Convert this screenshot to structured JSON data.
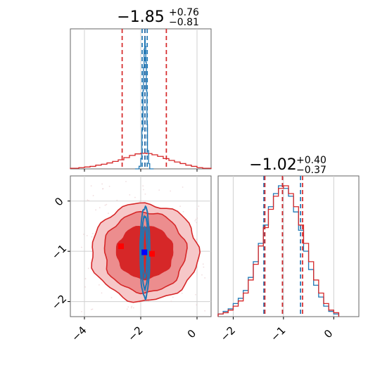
{
  "chart_data": {
    "type": "corner",
    "panels": [
      {
        "id": "top-left",
        "kind": "histogram-1d",
        "parameter_index": 0,
        "title": {
          "median": "−1.85",
          "plus": "+0.76",
          "minus": "−0.81"
        },
        "xlim": [
          -4.5,
          0.5
        ],
        "xticks": [
          -4,
          -2,
          0
        ],
        "grid": true,
        "series": [
          {
            "color": "#d62728",
            "quantiles": [
              -2.66,
              -1.85,
              -1.09
            ],
            "bins": [
              [
                -4.5,
                0.04
              ],
              [
                -4.2,
                0.08
              ],
              [
                -4.0,
                0.12
              ],
              [
                -3.8,
                0.16
              ],
              [
                -3.6,
                0.24
              ],
              [
                -3.4,
                0.3
              ],
              [
                -3.2,
                0.38
              ],
              [
                -3.0,
                0.48
              ],
              [
                -2.8,
                0.58
              ],
              [
                -2.6,
                0.72
              ],
              [
                -2.4,
                0.86
              ],
              [
                -2.2,
                0.96
              ],
              [
                -2.0,
                1.0
              ],
              [
                -1.8,
                0.98
              ],
              [
                -1.6,
                0.9
              ],
              [
                -1.4,
                0.8
              ],
              [
                -1.2,
                0.66
              ],
              [
                -1.0,
                0.54
              ],
              [
                -0.8,
                0.44
              ],
              [
                -0.6,
                0.34
              ],
              [
                -0.4,
                0.24
              ],
              [
                -0.2,
                0.16
              ],
              [
                0.0,
                0.08
              ],
              [
                0.2,
                0.04
              ]
            ]
          },
          {
            "color": "#1f77b4",
            "quantiles": [
              -1.95,
              -1.85,
              -1.77
            ],
            "bins": [
              [
                -2.2,
                0.0
              ],
              [
                -2.06,
                0.02
              ],
              [
                -2.0,
                0.08
              ],
              [
                -1.96,
                0.3
              ],
              [
                -1.92,
                0.6
              ],
              [
                -1.9,
                0.78
              ],
              [
                -1.88,
                0.92
              ],
              [
                -1.86,
                1.0
              ],
              [
                -1.84,
                0.94
              ],
              [
                -1.82,
                0.82
              ],
              [
                -1.8,
                0.6
              ],
              [
                -1.78,
                0.34
              ],
              [
                -1.76,
                0.14
              ],
              [
                -1.72,
                0.04
              ],
              [
                -1.68,
                0.0
              ]
            ]
          }
        ]
      },
      {
        "id": "bottom-left",
        "kind": "contour-2d",
        "xlim": [
          -4.5,
          0.5
        ],
        "ylim": [
          -2.3,
          0.5
        ],
        "xticks": [
          -4,
          -2,
          0
        ],
        "yticks": [
          0,
          -1,
          -2
        ],
        "grid": true,
        "series": [
          {
            "color": "#d62728",
            "center": [
              -1.85,
              -1.02
            ],
            "contour_levels": [
              {
                "half_width": [
                  1.0,
                  0.52
                ],
                "fill": "#d62728",
                "opacity": 1.0
              },
              {
                "half_width": [
                  1.45,
                  0.8
                ],
                "fill": "#ec8d8e",
                "opacity": 1.0
              },
              {
                "half_width": [
                  1.9,
                  0.97
                ],
                "fill": "#f6c7c8",
                "opacity": 1.0
              }
            ],
            "markers": [
              [
                -2.7,
                -0.9
              ],
              [
                -1.6,
                -1.05
              ]
            ]
          },
          {
            "color": "#1f77b4",
            "center": [
              -1.85,
              -1.02
            ],
            "contour_levels": [
              {
                "half_width": [
                  0.07,
                  0.5
                ]
              },
              {
                "half_width": [
                  0.12,
                  0.72
                ]
              },
              {
                "half_width": [
                  0.17,
                  0.9
                ]
              }
            ],
            "markers": [
              [
                -1.87,
                -1.02
              ]
            ]
          }
        ]
      },
      {
        "id": "bottom-right",
        "kind": "histogram-1d",
        "parameter_index": 1,
        "title": {
          "median": "−1.02",
          "plus": "+0.40",
          "minus": "−0.37"
        },
        "xlim": [
          -2.3,
          0.5
        ],
        "xticks": [
          -2,
          -1,
          0
        ],
        "grid": true,
        "series": [
          {
            "color": "#1f77b4",
            "quantiles": [
              -1.39,
              -1.02,
              -0.66
            ],
            "bins": [
              [
                -2.3,
                0.02
              ],
              [
                -2.2,
                0.04
              ],
              [
                -2.1,
                0.06
              ],
              [
                -2.0,
                0.1
              ],
              [
                -1.9,
                0.14
              ],
              [
                -1.8,
                0.2
              ],
              [
                -1.7,
                0.3
              ],
              [
                -1.6,
                0.42
              ],
              [
                -1.5,
                0.56
              ],
              [
                -1.4,
                0.7
              ],
              [
                -1.3,
                0.84
              ],
              [
                -1.2,
                0.94
              ],
              [
                -1.1,
                1.0
              ],
              [
                -1.0,
                0.98
              ],
              [
                -0.9,
                0.92
              ],
              [
                -0.8,
                0.8
              ],
              [
                -0.7,
                0.66
              ],
              [
                -0.6,
                0.5
              ],
              [
                -0.5,
                0.36
              ],
              [
                -0.4,
                0.24
              ],
              [
                -0.3,
                0.15
              ],
              [
                -0.2,
                0.08
              ],
              [
                -0.1,
                0.04
              ],
              [
                0.0,
                0.02
              ]
            ]
          },
          {
            "color": "#d62728",
            "quantiles": [
              -1.37,
              -1.02,
              -0.62
            ],
            "bins": [
              [
                -2.3,
                0.02
              ],
              [
                -2.2,
                0.03
              ],
              [
                -2.1,
                0.05
              ],
              [
                -2.0,
                0.08
              ],
              [
                -1.9,
                0.12
              ],
              [
                -1.8,
                0.18
              ],
              [
                -1.7,
                0.28
              ],
              [
                -1.6,
                0.4
              ],
              [
                -1.5,
                0.54
              ],
              [
                -1.4,
                0.68
              ],
              [
                -1.3,
                0.82
              ],
              [
                -1.2,
                0.92
              ],
              [
                -1.1,
                0.98
              ],
              [
                -1.0,
                1.0
              ],
              [
                -0.9,
                0.94
              ],
              [
                -0.8,
                0.84
              ],
              [
                -0.7,
                0.7
              ],
              [
                -0.6,
                0.56
              ],
              [
                -0.5,
                0.42
              ],
              [
                -0.4,
                0.28
              ],
              [
                -0.3,
                0.18
              ],
              [
                -0.2,
                0.1
              ],
              [
                -0.1,
                0.05
              ],
              [
                0.0,
                0.03
              ]
            ]
          }
        ]
      }
    ]
  }
}
